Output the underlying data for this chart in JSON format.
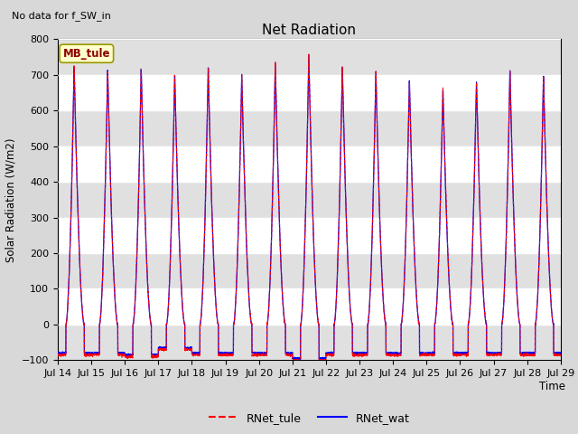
{
  "title": "Net Radiation",
  "suptitle": "No data for f_SW_in",
  "ylabel": "Solar Radiation (W/m2)",
  "xlabel": "Time",
  "ylim": [
    -100,
    800
  ],
  "legend_label1": "RNet_tule",
  "legend_label2": "RNet_wat",
  "legend_color1": "red",
  "legend_color2": "blue",
  "annotation_label": "MB_tule",
  "annotation_color": "#8b0000",
  "annotation_bg": "#ffffcc",
  "annotation_edge": "#999900",
  "x_ticks_labels": [
    "Jul 14",
    "Jul 15",
    "Jul 16",
    "Jul 17",
    "Jul 18",
    "Jul 19",
    "Jul 20",
    "Jul 21",
    "Jul 22",
    "Jul 23",
    "Jul 24",
    "Jul 25",
    "Jul 26",
    "Jul 27",
    "Jul 28",
    "Jul 29"
  ],
  "num_days": 15,
  "peak_tule": [
    730,
    715,
    720,
    700,
    720,
    700,
    735,
    760,
    725,
    710,
    685,
    670,
    685,
    715,
    700
  ],
  "peak_wat": [
    728,
    718,
    718,
    702,
    722,
    702,
    733,
    758,
    726,
    712,
    688,
    660,
    688,
    717,
    702
  ],
  "night_tule": [
    -85,
    -85,
    -90,
    -70,
    -85,
    -85,
    -85,
    -100,
    -85,
    -85,
    -85,
    -85,
    -85,
    -85,
    -85
  ],
  "night_wat": [
    -80,
    -80,
    -85,
    -65,
    -80,
    -80,
    -80,
    -95,
    -80,
    -80,
    -80,
    -80,
    -80,
    -80,
    -80
  ],
  "background": "#d8d8d8",
  "plot_bg": "#ffffff",
  "band_color": "#e0e0e0"
}
